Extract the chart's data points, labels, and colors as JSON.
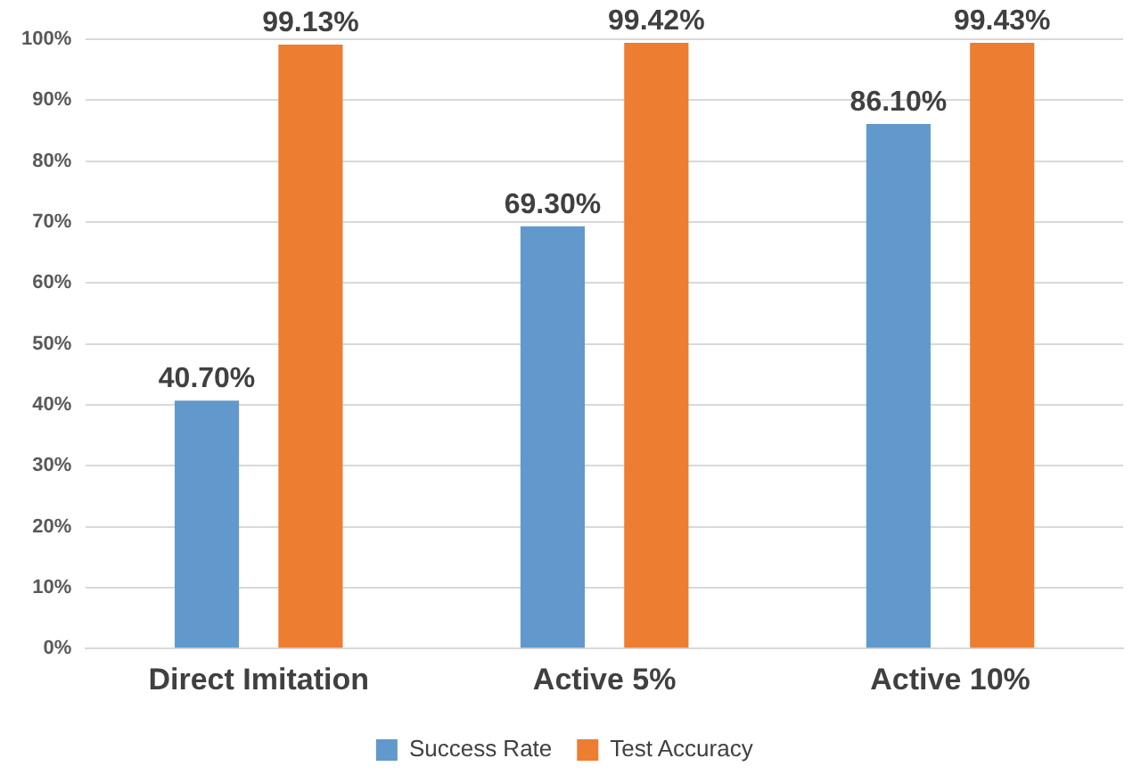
{
  "chart_data": {
    "type": "bar",
    "categories": [
      "Direct Imitation",
      "Active 5%",
      "Active 10%"
    ],
    "series": [
      {
        "name": "Success Rate",
        "color": "#6199cc",
        "values": [
          40.7,
          69.3,
          86.1
        ],
        "value_labels": [
          "40.70%",
          "69.30%",
          "86.10%"
        ]
      },
      {
        "name": "Test Accuracy",
        "color": "#ed7d31",
        "values": [
          99.13,
          99.42,
          99.43
        ],
        "value_labels": [
          "99.13%",
          "99.42%",
          "99.43%"
        ]
      }
    ],
    "ylim": [
      0,
      100
    ],
    "yticks": [
      {
        "value": 0,
        "label": "0%"
      },
      {
        "value": 10,
        "label": "10%"
      },
      {
        "value": 20,
        "label": "20%"
      },
      {
        "value": 30,
        "label": "30%"
      },
      {
        "value": 40,
        "label": "40%"
      },
      {
        "value": 50,
        "label": "50%"
      },
      {
        "value": 60,
        "label": "60%"
      },
      {
        "value": 70,
        "label": "70%"
      },
      {
        "value": 80,
        "label": "80%"
      },
      {
        "value": 90,
        "label": "90%"
      },
      {
        "value": 100,
        "label": "100%"
      }
    ],
    "grid": "y",
    "legend": "bottom"
  }
}
